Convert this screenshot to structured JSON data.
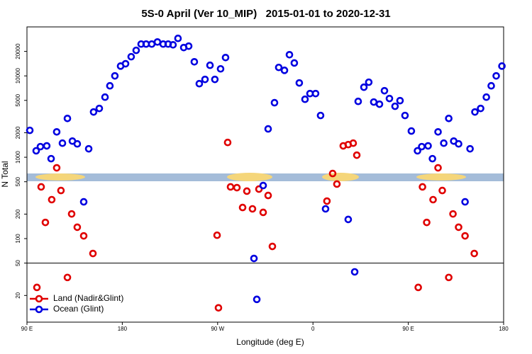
{
  "chart_data": {
    "type": "scatter",
    "title": "5S-0 April (Ver 10_MIP)   2015-01-01 to 2020-12-31",
    "x_label": "Longitude (deg E)",
    "y_label": "N Total",
    "log_y": true,
    "xlim": [
      90,
      540
    ],
    "ylim": [
      9.4,
      40000
    ],
    "xticks": [
      {
        "value": 90,
        "label": "90 E"
      },
      180,
      {
        "value": 270,
        "label": "90 W"
      },
      {
        "value": 360,
        "label": "0"
      },
      {
        "value": 450,
        "label": "90 E"
      },
      {
        "value": 540,
        "label": "180"
      }
    ],
    "yticks": [
      20,
      50,
      100,
      200,
      500,
      1000,
      2000,
      5000,
      10000,
      20000
    ],
    "reference_line": 50,
    "legend": "lower left",
    "series": [
      {
        "name": "Land (Nadir&Glint)",
        "color": "#e00000",
        "x": [
          99.4,
          103.4,
          107.4,
          113.4,
          118.1,
          122.1,
          128.2,
          132.2,
          137.5,
          143.6,
          152.3,
          269.5,
          270.8,
          279.5,
          282.2,
          288.2,
          293.6,
          297.6,
          302.9,
          309.0,
          313.0,
          317.7,
          321.7,
          373.2,
          378.6,
          382.6,
          388.6,
          393.3,
          398.0,
          401.4,
          459.4,
          463.4,
          467.4,
          473.4,
          478.1,
          482.1,
          488.2,
          492.2,
          497.5,
          503.6,
          512.3
        ],
        "values": [
          25.1,
          432,
          158,
          301,
          741,
          390,
          33.3,
          201,
          138,
          108,
          65.6,
          110,
          14.1,
          1520,
          432,
          423,
          241,
          383,
          232,
          406,
          210,
          339,
          80.2,
          289,
          631,
          468,
          1380,
          1430,
          1490,
          1060,
          25.1,
          432,
          158,
          301,
          741,
          390,
          33.3,
          201,
          138,
          108,
          65.6
        ]
      },
      {
        "name": "Ocean (Glint)",
        "color": "#0000e0",
        "x": [
          92.7,
          98.7,
          102.7,
          108.7,
          112.8,
          118.1,
          123.5,
          128.2,
          132.9,
          137.5,
          143.6,
          148.3,
          152.9,
          158.3,
          163.7,
          168.3,
          173.0,
          178.4,
          183.1,
          188.4,
          193.1,
          197.8,
          202.5,
          207.8,
          213.2,
          218.6,
          223.3,
          227.9,
          232.6,
          238.0,
          242.7,
          248.0,
          252.7,
          258.1,
          262.8,
          267.4,
          272.8,
          277.5,
          304.3,
          307.0,
          313.0,
          317.7,
          323.7,
          327.7,
          333.1,
          337.8,
          342.4,
          347.1,
          352.5,
          357.2,
          362.5,
          367.2,
          371.9,
          393.3,
          399.4,
          402.7,
          408.1,
          412.7,
          417.4,
          422.8,
          427.5,
          432.2,
          437.5,
          442.2,
          446.9,
          452.9,
          458.7,
          462.7,
          468.7,
          472.8,
          478.1,
          483.5,
          488.2,
          492.9,
          497.5,
          503.6,
          508.3,
          512.9,
          518.3,
          523.7,
          528.3,
          533.0,
          538.4
        ],
        "values": [
          2140,
          1200,
          1350,
          1380,
          960,
          2050,
          1490,
          3000,
          1580,
          1460,
          283,
          1270,
          3600,
          3980,
          5480,
          7550,
          10000,
          13200,
          14100,
          17200,
          20600,
          24600,
          24600,
          24600,
          26100,
          24600,
          24600,
          24100,
          28900,
          22300,
          23200,
          14900,
          8020,
          9050,
          13500,
          9050,
          12200,
          16800,
          57,
          17.9,
          449,
          2230,
          4680,
          12700,
          11700,
          18200,
          14400,
          8190,
          5160,
          6060,
          6060,
          3260,
          232,
          172,
          39,
          4860,
          7260,
          8360,
          4770,
          4490,
          6570,
          5270,
          4230,
          4960,
          3260,
          2100,
          1200,
          1350,
          1380,
          960,
          2050,
          1490,
          3000,
          1580,
          1460,
          283,
          1270,
          3600,
          3980,
          5480,
          7550,
          10000,
          13200
        ]
      }
    ]
  }
}
